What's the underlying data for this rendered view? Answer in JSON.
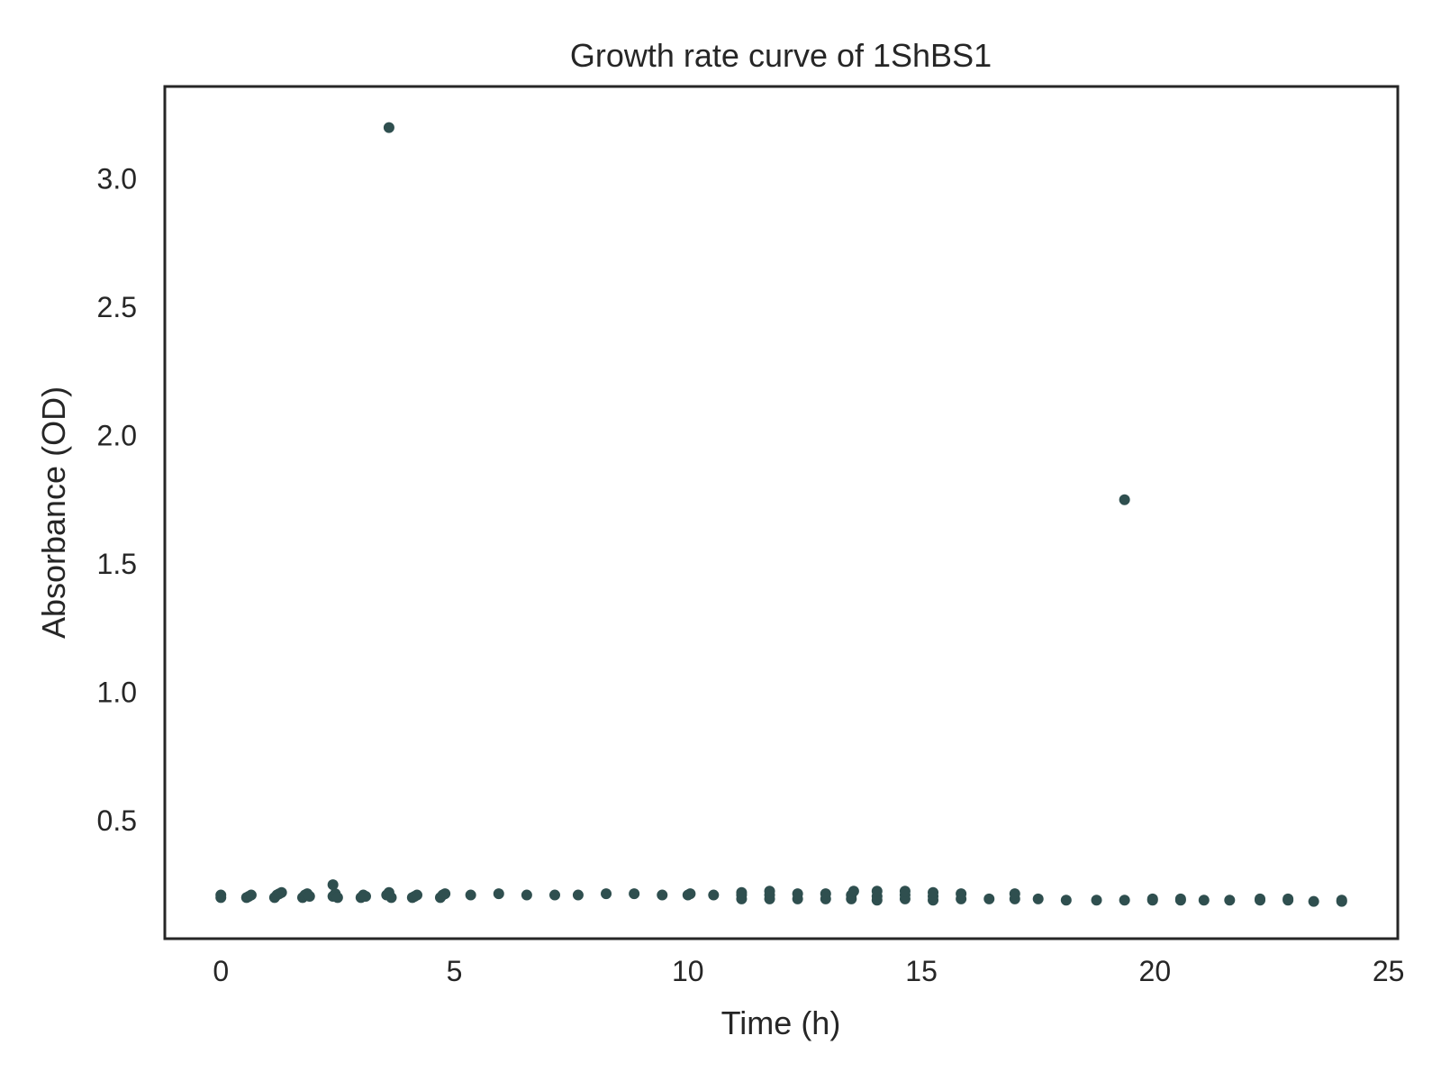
{
  "chart_data": {
    "type": "scatter",
    "title": "Growth rate curve of 1ShBS1",
    "xlabel": "Time (h)",
    "ylabel": "Absorbance (OD)",
    "xlim": [
      -1.2,
      25.2
    ],
    "ylim": [
      0.04,
      3.36
    ],
    "xticks": [
      0,
      5,
      10,
      15,
      20,
      25
    ],
    "yticks": [
      0.5,
      1.0,
      1.5,
      2.0,
      2.5,
      3.0
    ],
    "xtick_labels": [
      "0",
      "5",
      "10",
      "15",
      "20",
      "25"
    ],
    "ytick_labels": [
      "0.5",
      "1.0",
      "1.5",
      "2.0",
      "2.5",
      "3.0"
    ],
    "grid": false,
    "marker_color": "#2f4f4f",
    "series": [
      {
        "x": [
          0,
          0,
          0.55,
          0.6,
          0.65,
          1.15,
          1.2,
          1.25,
          1.3,
          1.75,
          1.8,
          1.85,
          1.9,
          2.4,
          2.4,
          2.45,
          2.5,
          3.0,
          3.05,
          3.1,
          3.55,
          3.6,
          3.6,
          3.65,
          4.1,
          4.15,
          4.2,
          4.7,
          4.75,
          4.8,
          5.35,
          5.95,
          6.55,
          7.15,
          7.65,
          8.25,
          8.85,
          9.45,
          10.0,
          10.05,
          10.55,
          11.15,
          11.15,
          11.15,
          11.75,
          11.75,
          11.75,
          12.35,
          12.35,
          12.95,
          12.95,
          13.5,
          13.5,
          13.55,
          14.05,
          14.05,
          14.05,
          14.65,
          14.65,
          14.65,
          15.25,
          15.25,
          15.25,
          15.85,
          15.85,
          16.45,
          17.0,
          17.0,
          17.5,
          18.1,
          18.75,
          19.35,
          19.35,
          19.95,
          19.95,
          20.55,
          20.55,
          21.05,
          21.6,
          22.25,
          22.25,
          22.85,
          22.85,
          23.4,
          24.0,
          24.0
        ],
        "y": [
          0.21,
          0.2,
          0.2,
          0.205,
          0.21,
          0.2,
          0.21,
          0.215,
          0.22,
          0.2,
          0.21,
          0.215,
          0.205,
          0.205,
          0.25,
          0.215,
          0.2,
          0.2,
          0.21,
          0.205,
          0.21,
          0.22,
          3.2,
          0.2,
          0.2,
          0.205,
          0.21,
          0.2,
          0.21,
          0.215,
          0.21,
          0.215,
          0.21,
          0.21,
          0.21,
          0.215,
          0.215,
          0.21,
          0.21,
          0.215,
          0.21,
          0.195,
          0.21,
          0.22,
          0.195,
          0.21,
          0.225,
          0.195,
          0.215,
          0.195,
          0.215,
          0.195,
          0.21,
          0.225,
          0.19,
          0.205,
          0.225,
          0.195,
          0.21,
          0.225,
          0.19,
          0.205,
          0.22,
          0.195,
          0.215,
          0.195,
          0.195,
          0.215,
          0.195,
          0.19,
          0.19,
          0.19,
          1.75,
          0.19,
          0.195,
          0.19,
          0.195,
          0.19,
          0.19,
          0.19,
          0.195,
          0.19,
          0.195,
          0.185,
          0.185,
          0.19
        ]
      }
    ]
  }
}
